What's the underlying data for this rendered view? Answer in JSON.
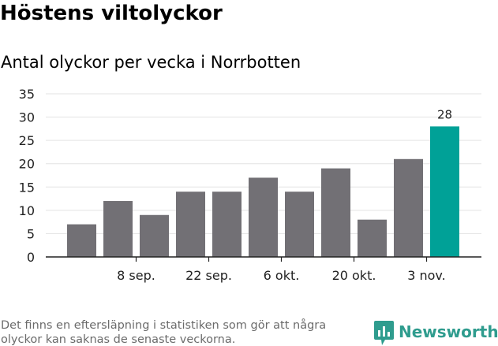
{
  "header": {
    "title": "Höstens viltolyckor",
    "subtitle": "Antal olyckor per vecka i Norrbotten"
  },
  "footer": {
    "note": "Det finns en eftersläpning i statistiken som gör att några olyckor kan saknas de senaste veckorna.",
    "brand": "Newsworthy"
  },
  "colors": {
    "bar": "#727075",
    "highlight": "#00a197",
    "grid": "#e3e3e3",
    "axis": "#222222",
    "brand": "#2f9c8e"
  },
  "icons": {
    "logo": "newsworthy-chart-icon"
  },
  "chart_data": {
    "type": "bar",
    "values": [
      7,
      12,
      9,
      14,
      14,
      17,
      14,
      19,
      8,
      21,
      28
    ],
    "highlight_index": 10,
    "data_labels": [
      {
        "index": 10,
        "text": "28"
      }
    ],
    "x_ticks": [
      {
        "index": 1.5,
        "label": "8 sep."
      },
      {
        "index": 3.5,
        "label": "22 sep."
      },
      {
        "index": 5.5,
        "label": "6 okt."
      },
      {
        "index": 7.5,
        "label": "20 okt."
      },
      {
        "index": 9.5,
        "label": "3 nov."
      }
    ],
    "y_ticks": [
      0,
      5,
      10,
      15,
      20,
      25,
      30,
      35
    ],
    "ylim": [
      0,
      35
    ],
    "grid": true,
    "legend": "none"
  }
}
